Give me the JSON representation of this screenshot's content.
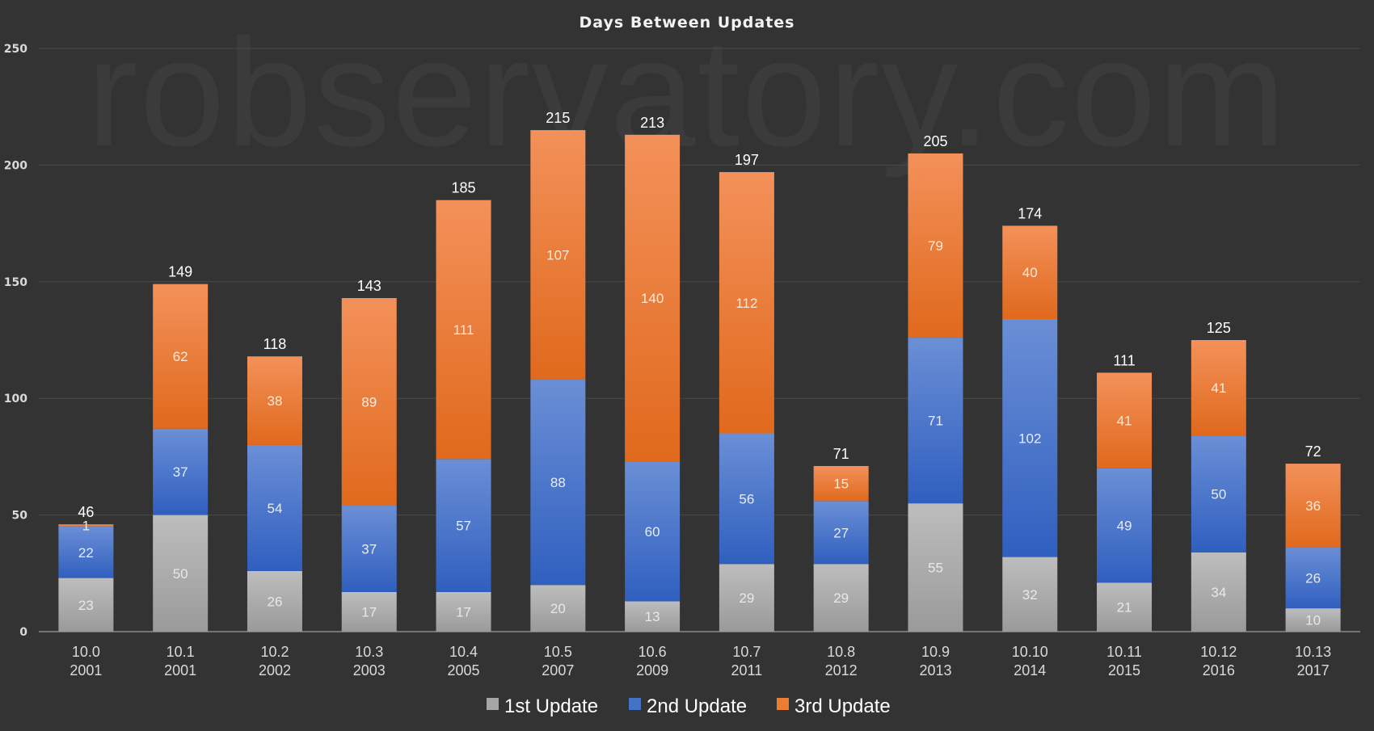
{
  "chart_data": {
    "type": "bar",
    "stacked": true,
    "title": "Days Between Updates",
    "watermark": "robservatory.com",
    "categories": [
      [
        "10.0",
        "2001"
      ],
      [
        "10.1",
        "2001"
      ],
      [
        "10.2",
        "2002"
      ],
      [
        "10.3",
        "2003"
      ],
      [
        "10.4",
        "2005"
      ],
      [
        "10.5",
        "2007"
      ],
      [
        "10.6",
        "2009"
      ],
      [
        "10.7",
        "2011"
      ],
      [
        "10.8",
        "2012"
      ],
      [
        "10.9",
        "2013"
      ],
      [
        "10.10",
        "2014"
      ],
      [
        "10.11",
        "2015"
      ],
      [
        "10.12",
        "2016"
      ],
      [
        "10.13",
        "2017"
      ]
    ],
    "series": [
      {
        "name": "1st Update",
        "color": "#a6a6a6",
        "values": [
          23,
          50,
          26,
          17,
          17,
          20,
          13,
          29,
          29,
          55,
          32,
          21,
          34,
          10
        ]
      },
      {
        "name": "2nd Update",
        "color": "#4472c4",
        "values": [
          22,
          37,
          54,
          37,
          57,
          88,
          60,
          56,
          27,
          71,
          102,
          49,
          50,
          26
        ]
      },
      {
        "name": "3rd Update",
        "color": "#ed7d31",
        "values": [
          1,
          62,
          38,
          89,
          111,
          107,
          140,
          112,
          15,
          79,
          40,
          41,
          41,
          36
        ]
      }
    ],
    "totals": [
      46,
      149,
      118,
      143,
      185,
      215,
      213,
      197,
      71,
      205,
      174,
      111,
      125,
      72
    ],
    "ylim": [
      0,
      250
    ],
    "yticks": [
      0,
      50,
      100,
      150,
      200,
      250
    ],
    "grid": true,
    "legend": "bottom"
  }
}
